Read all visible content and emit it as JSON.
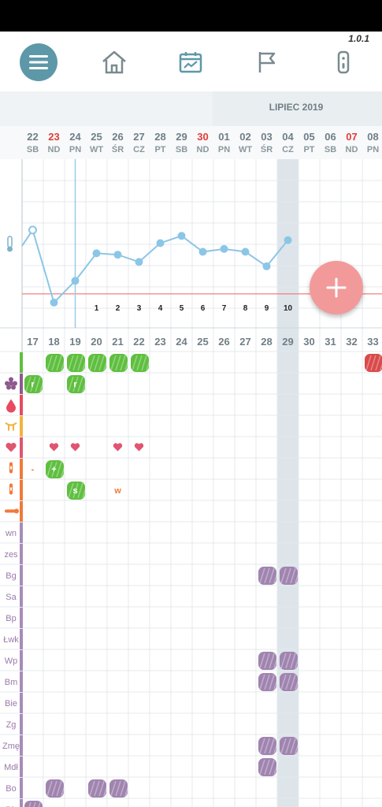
{
  "app": {
    "version": "1.0.1"
  },
  "nav": {
    "items": [
      "menu-icon",
      "home-icon",
      "chart-calendar-icon",
      "flag-icon",
      "thermometer-device-icon"
    ]
  },
  "calendar": {
    "month_label": "LIPIEC 2019",
    "days": [
      {
        "num": "22",
        "wd": "SB",
        "red": false
      },
      {
        "num": "23",
        "wd": "ND",
        "red": true
      },
      {
        "num": "24",
        "wd": "PN",
        "red": false
      },
      {
        "num": "25",
        "wd": "WT",
        "red": false
      },
      {
        "num": "26",
        "wd": "ŚR",
        "red": false
      },
      {
        "num": "27",
        "wd": "CZ",
        "red": false
      },
      {
        "num": "28",
        "wd": "PT",
        "red": false
      },
      {
        "num": "29",
        "wd": "SB",
        "red": false
      },
      {
        "num": "30",
        "wd": "ND",
        "red": true
      },
      {
        "num": "01",
        "wd": "PN",
        "red": false
      },
      {
        "num": "02",
        "wd": "WT",
        "red": false
      },
      {
        "num": "03",
        "wd": "ŚR",
        "red": false
      },
      {
        "num": "04",
        "wd": "CZ",
        "red": false
      },
      {
        "num": "05",
        "wd": "PT",
        "red": false
      },
      {
        "num": "06",
        "wd": "SB",
        "red": false
      },
      {
        "num": "07",
        "wd": "ND",
        "red": true
      },
      {
        "num": "08",
        "wd": "PN",
        "red": false
      }
    ],
    "cycle_days": [
      "17",
      "18",
      "19",
      "20",
      "21",
      "22",
      "23",
      "24",
      "25",
      "26",
      "27",
      "28",
      "29",
      "30",
      "31",
      "32",
      "33"
    ],
    "post_ovulation_counts": [
      "1",
      "2",
      "3",
      "4",
      "5",
      "6",
      "7",
      "8",
      "9",
      "10"
    ],
    "today_index": 12
  },
  "temperature": {
    "values": [
      0.62,
      0.12,
      0.27,
      0.46,
      0.45,
      0.4,
      0.53,
      0.58,
      0.47,
      0.49,
      0.47,
      0.37,
      0.55
    ],
    "cover_line": 0.18
  },
  "rows": [
    {
      "label": "",
      "color": "#5fbf3f"
    },
    {
      "label": "",
      "color": "#8e5a8e"
    },
    {
      "label": "",
      "color": "#e84a5f"
    },
    {
      "label": "",
      "color": "#f2b33d"
    },
    {
      "label": "",
      "color": "#e0556f"
    },
    {
      "label": "",
      "color": "#f07a3a"
    },
    {
      "label": "",
      "color": "#f07a3a"
    },
    {
      "label": "",
      "color": "#f07a3a"
    },
    {
      "label": "wn",
      "color": "#a98bb8"
    },
    {
      "label": "zes",
      "color": "#a98bb8"
    },
    {
      "label": "Bg",
      "color": "#a98bb8"
    },
    {
      "label": "Sa",
      "color": "#a98bb8"
    },
    {
      "label": "Bp",
      "color": "#a98bb8"
    },
    {
      "label": "Łwk",
      "color": "#a98bb8"
    },
    {
      "label": "Wp",
      "color": "#a98bb8"
    },
    {
      "label": "Bm",
      "color": "#a98bb8"
    },
    {
      "label": "Bie",
      "color": "#a98bb8"
    },
    {
      "label": "Zg",
      "color": "#a98bb8"
    },
    {
      "label": "Zmę",
      "color": "#a98bb8"
    },
    {
      "label": "Mdł",
      "color": "#a98bb8"
    },
    {
      "label": "Bo",
      "color": "#a98bb8"
    },
    {
      "label": "Bb",
      "color": "#a98bb8"
    }
  ],
  "row_icons": [
    "",
    "flower-icon",
    "drop-icon",
    "cervix-icon",
    "heart-icon",
    "test-icon",
    "test-icon",
    "thermometer-icon"
  ],
  "marks": {
    "green_blobs": [
      [
        0,
        1
      ],
      [
        0,
        2
      ],
      [
        0,
        3
      ],
      [
        0,
        4
      ],
      [
        0,
        5
      ],
      [
        1,
        0
      ],
      [
        1,
        2
      ],
      [
        5,
        1
      ],
      [
        6,
        2
      ]
    ],
    "red_blobs": [
      [
        0,
        16
      ]
    ],
    "purple_blobs": [
      [
        10,
        11
      ],
      [
        10,
        12
      ],
      [
        14,
        11
      ],
      [
        14,
        12
      ],
      [
        15,
        11
      ],
      [
        15,
        12
      ],
      [
        18,
        11
      ],
      [
        18,
        12
      ],
      [
        19,
        11
      ],
      [
        20,
        1
      ],
      [
        20,
        3
      ],
      [
        20,
        4
      ],
      [
        21,
        0
      ]
    ],
    "blob_labels": [
      {
        "row": 1,
        "col": 0,
        "text": "r"
      },
      {
        "row": 1,
        "col": 2,
        "text": "r"
      },
      {
        "row": 5,
        "col": 1,
        "text": "+"
      },
      {
        "row": 6,
        "col": 2,
        "text": "s"
      }
    ],
    "hearts": [
      [
        4,
        1
      ],
      [
        4,
        2
      ],
      [
        4,
        4
      ],
      [
        4,
        5
      ]
    ],
    "small_texts": [
      {
        "row": 5,
        "col": 0,
        "text": "-",
        "color": "#f07a3a"
      },
      {
        "row": 6,
        "col": 4,
        "text": "w",
        "color": "#f07a3a"
      }
    ]
  },
  "colors": {
    "accent": "#5d98a8",
    "fab": "#f29a9a",
    "temp_line": "#8cc6e6",
    "cover_line": "#f08080",
    "grid": "#e4e9ec",
    "highlight": "#dde5ea",
    "header_bg": "#f0f3f5"
  }
}
